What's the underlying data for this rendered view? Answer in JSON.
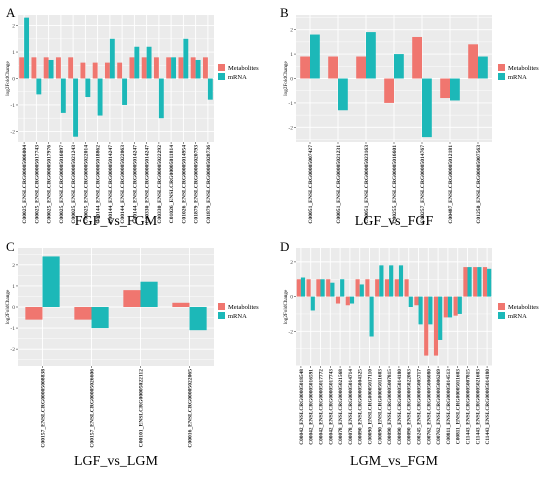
{
  "figure": {
    "colors": {
      "metabolites": "#f0766f",
      "mrna": "#1cb8b8",
      "panel_bg": "#ebebeb",
      "grid": "#ffffff"
    },
    "legend_labels": [
      "Metabolites",
      "mRNA"
    ]
  },
  "chart_data": [
    {
      "type": "bar",
      "panel_letter": "A",
      "title": "FGF_vs_FGM",
      "ylabel": "log2FoldChange",
      "xlabel": "",
      "ylim": [
        -2.4,
        2.4
      ],
      "yticks": [
        -2,
        -1,
        0,
        1,
        2
      ],
      "grid": true,
      "legend": "right",
      "categories": [
        "C00025_ENSLCRG00005006004",
        "C00025_ENSLCRG00005017743",
        "C00025_ENSLCRG00005017976",
        "C00025_ENSLCRG00005016097",
        "C00025_ENSLCRG00005021243",
        "C00025_ENSLCRG00005022014",
        "C00144_ENSLCRG00005018862",
        "C00144_ENSLCRG00005014247",
        "C00144_ENSLCRG00005022063",
        "C00144_ENSLCRG00005014247",
        "C00330_ENSLCRG00005014247",
        "C00330_ENSLCRG00005022292",
        "C01026_ENSLCRG00005011814",
        "C01026_ENSLCRG00005014954",
        "C01879_ENSLCRG00005020793",
        "C01879_ENSLCRG00005028736"
      ],
      "series": [
        {
          "name": "Metabolites",
          "values": [
            0.8,
            0.8,
            0.8,
            0.8,
            0.8,
            0.6,
            0.6,
            0.6,
            0.6,
            0.8,
            0.8,
            0.8,
            0.8,
            0.8,
            0.8,
            0.8
          ]
        },
        {
          "name": "mRNA",
          "values": [
            2.3,
            -0.6,
            0.7,
            -1.3,
            -2.2,
            -0.7,
            -1.4,
            1.5,
            -1.0,
            1.2,
            1.2,
            -1.5,
            0.8,
            1.5,
            0.7,
            -0.8
          ]
        }
      ]
    },
    {
      "type": "bar",
      "panel_letter": "B",
      "title": "LGF_vs_FGF",
      "ylabel": "log2FoldChange",
      "xlabel": "",
      "ylim": [
        -2.6,
        2.6
      ],
      "yticks": [
        -2,
        -1,
        0,
        1,
        2
      ],
      "grid": true,
      "legend": "right",
      "categories": [
        "C00051_ENSLCRG00005007427",
        "C00051_ENSLCRG00005021231",
        "C00051_ENSLCRG00005023163",
        "C00255_ENSLCRG00005016601",
        "C00257_ENSLCRG00005014767",
        "C00487_ENSLCRG00005012181",
        "C01250_ENSLCRG00005007563"
      ],
      "series": [
        {
          "name": "Metabolites",
          "values": [
            0.9,
            0.9,
            0.9,
            -1.0,
            1.7,
            -0.8,
            1.4
          ]
        },
        {
          "name": "mRNA",
          "values": [
            1.8,
            -1.3,
            1.9,
            1.0,
            -2.4,
            -0.9,
            0.9
          ]
        }
      ]
    },
    {
      "type": "bar",
      "panel_letter": "C",
      "title": "LGF_vs_LGM",
      "ylabel": "log2FoldChange",
      "xlabel": "",
      "ylim": [
        -2.8,
        2.8
      ],
      "yticks": [
        -2,
        -1,
        0,
        1,
        2
      ],
      "grid": true,
      "legend": "right",
      "categories": [
        "C00157_ENSLCRG00005008838",
        "C00157_ENSLCRG00005026606",
        "C00101_ENSLCRG00005022112",
        "C00016_ENSLCRG00005022065"
      ],
      "series": [
        {
          "name": "Metabolites",
          "values": [
            -0.6,
            -0.6,
            0.8,
            0.2
          ]
        },
        {
          "name": "mRNA",
          "values": [
            2.4,
            -1.0,
            1.2,
            -1.1
          ]
        }
      ]
    },
    {
      "type": "bar",
      "panel_letter": "D",
      "title": "LGM_vs_FGM",
      "ylabel": "log2FoldChange",
      "xlabel": "",
      "ylim": [
        -4.0,
        2.8
      ],
      "yticks": [
        -2,
        0,
        2
      ],
      "grid": true,
      "legend": "right",
      "categories": [
        "C00042_ENSLCRG00005018548",
        "C00042_ENSLCRG00005016591",
        "C00042_ENSLCRG00005017772",
        "C00042_ENSLCRG00005017743",
        "C00078_ENSLCRG00005021568",
        "C00078_ENSLCRG00005014714",
        "C00090_ENSLCRG00005004325",
        "C00090_ENSLCRG00005017110",
        "C00090_ENSLCRG00005011603",
        "C00090_ENSLCRG00005007815",
        "C00090_ENSLCRG00005014180",
        "C00090_ENSLCRG00005022063",
        "C00245_ENSLCRG00005005717",
        "C00762_ENSLCRG00005006080",
        "C00762_ENSLCRG00005006269",
        "C00811_ENSLCRG00005014513",
        "C00811_ENSLCRG00005011603",
        "C11443_ENSLCRG00005007815",
        "C11443_ENSLCRG00005021603",
        "C11443_ENSLCRG00005014180"
      ],
      "series": [
        {
          "name": "Metabolites",
          "values": [
            1.0,
            1.0,
            1.0,
            1.0,
            -0.4,
            -0.5,
            1.0,
            1.0,
            1.0,
            1.0,
            1.0,
            1.0,
            -0.5,
            -3.4,
            -3.4,
            -1.2,
            -1.1,
            1.7,
            1.7,
            1.7
          ]
        },
        {
          "name": "mRNA",
          "values": [
            1.1,
            -0.8,
            1.0,
            0.8,
            1.0,
            -0.4,
            0.7,
            -2.3,
            1.8,
            1.8,
            1.8,
            -0.6,
            -1.6,
            -1.6,
            -2.5,
            -1.2,
            -1.0,
            1.7,
            1.7,
            1.6
          ]
        }
      ]
    }
  ]
}
